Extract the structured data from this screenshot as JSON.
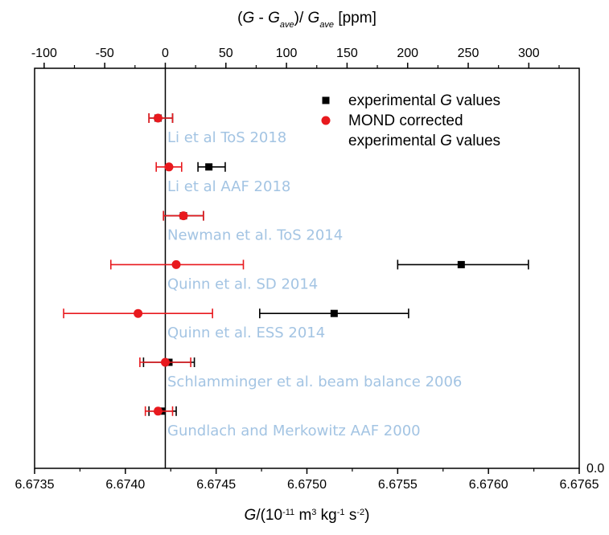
{
  "chart_data": {
    "type": "scatter",
    "title": "",
    "xlabel": {
      "parts": [
        [
          "G",
          true,
          false
        ],
        [
          "/(10",
          false,
          false
        ],
        [
          "-11",
          false,
          "sup"
        ],
        [
          " m",
          false,
          false
        ],
        [
          "3",
          false,
          "sup"
        ],
        [
          " kg",
          false,
          false
        ],
        [
          "-1",
          false,
          "sup"
        ],
        [
          " s",
          false,
          false
        ],
        [
          "-2",
          false,
          "sup"
        ],
        [
          ")",
          false,
          false
        ]
      ]
    },
    "x2label": {
      "parts": [
        [
          "(",
          false,
          false
        ],
        [
          "G",
          true,
          false
        ],
        [
          " - ",
          false,
          false
        ],
        [
          "G",
          true,
          false
        ],
        [
          "ave",
          true,
          "sub"
        ],
        [
          ")/ ",
          false,
          false
        ],
        [
          "G",
          true,
          false
        ],
        [
          "ave",
          true,
          "sub"
        ],
        [
          " [ppm]",
          false,
          false
        ]
      ]
    },
    "xlim": [
      6.6735,
      6.6765
    ],
    "x_ticks": [
      "6.6735",
      "6.6740",
      "6.6745",
      "6.6750",
      "6.6755",
      "6.6760",
      "6.6765"
    ],
    "x2_ticks": [
      "-100",
      "-50",
      "0",
      "50",
      "100",
      "150",
      "200",
      "250",
      "300"
    ],
    "x2_tick_values": [
      -100,
      -50,
      0,
      50,
      100,
      150,
      200,
      250,
      300
    ],
    "g_ave": 6.67422,
    "right_axis_label": "0.0",
    "experiments": [
      {
        "label": "Li et al ToS 2018"
      },
      {
        "label": "Li et al AAF 2018"
      },
      {
        "label": "Newman et al. ToS 2014"
      },
      {
        "label": "Quinn et al. SD 2014"
      },
      {
        "label": "Quinn et al. ESS 2014"
      },
      {
        "label": "Schlamminger et al. beam balance 2006"
      },
      {
        "label": "Gundlach and Merkowitz AAF 2000"
      }
    ],
    "series": [
      {
        "name": "experimental G values",
        "color": "#000000",
        "marker": "square",
        "points": [
          {
            "x": 6.67418,
            "lo": 6.67413,
            "hi": 6.67426
          },
          {
            "x": 6.67446,
            "lo": 6.6744,
            "hi": 6.67455
          },
          {
            "x": 6.67432,
            "lo": 6.67421,
            "hi": 6.67443
          },
          {
            "x": 6.67585,
            "lo": 6.6755,
            "hi": 6.67622
          },
          {
            "x": 6.67515,
            "lo": 6.67474,
            "hi": 6.67556
          },
          {
            "x": 6.67424,
            "lo": 6.6741,
            "hi": 6.67438
          },
          {
            "x": 6.6742,
            "lo": 6.67413,
            "hi": 6.67428
          }
        ]
      },
      {
        "name": "MOND corrected experimental G values",
        "color": "#e8191e",
        "marker": "circle",
        "points": [
          {
            "x": 6.67418,
            "lo": 6.67413,
            "hi": 6.67426
          },
          {
            "x": 6.67424,
            "lo": 6.67417,
            "hi": 6.67431
          },
          {
            "x": 6.67432,
            "lo": 6.67421,
            "hi": 6.67443
          },
          {
            "x": 6.67428,
            "lo": 6.67392,
            "hi": 6.67465
          },
          {
            "x": 6.67407,
            "lo": 6.67366,
            "hi": 6.67448
          },
          {
            "x": 6.67422,
            "lo": 6.67408,
            "hi": 6.67436
          },
          {
            "x": 6.67418,
            "lo": 6.67411,
            "hi": 6.67426
          }
        ]
      }
    ],
    "legend": {
      "placement": "top-right",
      "items": [
        {
          "marker": "square",
          "color": "#000000",
          "lines": [
            {
              "parts": [
                [
                  "experimental ",
                  false,
                  false
                ],
                [
                  "G",
                  true,
                  false
                ],
                [
                  " values",
                  false,
                  false
                ]
              ]
            }
          ]
        },
        {
          "marker": "circle",
          "color": "#e8191e",
          "lines": [
            {
              "parts": [
                [
                  "MOND corrected",
                  false,
                  false
                ]
              ]
            },
            {
              "parts": [
                [
                  "experimental ",
                  false,
                  false
                ],
                [
                  "G",
                  true,
                  false
                ],
                [
                  " values",
                  false,
                  false
                ]
              ]
            }
          ]
        }
      ]
    },
    "label_color": "#a3c4e3"
  }
}
